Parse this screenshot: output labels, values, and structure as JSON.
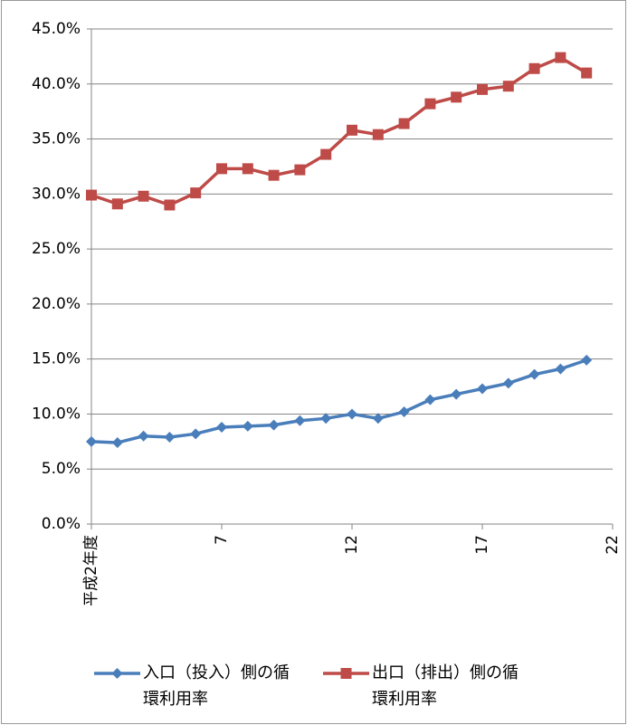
{
  "chart_data": {
    "type": "line",
    "x": [
      2,
      3,
      4,
      5,
      6,
      7,
      8,
      9,
      10,
      11,
      12,
      13,
      14,
      15,
      16,
      17,
      18,
      19,
      20,
      21
    ],
    "series": [
      {
        "name": "入口（投入）側の循環利用率",
        "color": "#4a7ebb",
        "marker": "diamond",
        "values": [
          7.5,
          7.4,
          8.0,
          7.9,
          8.2,
          8.8,
          8.9,
          9.0,
          9.4,
          9.6,
          10.0,
          9.6,
          10.2,
          11.3,
          11.8,
          12.3,
          12.8,
          13.6,
          14.1,
          14.9
        ]
      },
      {
        "name": "出口（排出）側の循環利用率",
        "color": "#be4b48",
        "marker": "square",
        "values": [
          29.9,
          29.1,
          29.8,
          29.0,
          30.1,
          32.3,
          32.3,
          31.7,
          32.2,
          33.6,
          35.8,
          35.4,
          36.4,
          38.2,
          38.8,
          39.5,
          39.8,
          41.4,
          42.4,
          41.0
        ]
      }
    ],
    "xlim": [
      2,
      22
    ],
    "xticks": [
      {
        "value": 2,
        "label": "平成2年度"
      },
      7,
      12,
      17,
      22
    ],
    "ylim": [
      0,
      45
    ],
    "yticks": [
      {
        "value": 0,
        "label": "0.0%"
      },
      {
        "value": 5,
        "label": "5.0%"
      },
      {
        "value": 10,
        "label": "10.0%"
      },
      {
        "value": 15,
        "label": "15.0%"
      },
      {
        "value": 20,
        "label": "20.0%"
      },
      {
        "value": 25,
        "label": "25.0%"
      },
      {
        "value": 30,
        "label": "30.0%"
      },
      {
        "value": 35,
        "label": "35.0%"
      },
      {
        "value": 40,
        "label": "40.0%"
      },
      {
        "value": 45,
        "label": "45.0%"
      }
    ],
    "grid": true
  }
}
